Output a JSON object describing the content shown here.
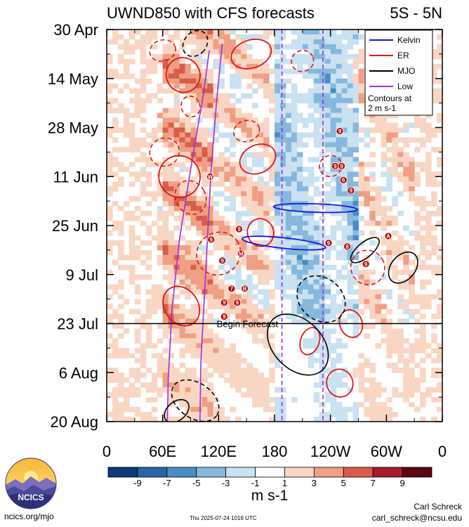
{
  "chart_data": {
    "type": "heatmap",
    "title": "UWND850 with CFS forecasts",
    "lat_band": "5S - 5N",
    "y_ticks": [
      {
        "label": "30 Apr",
        "day": 0
      },
      {
        "label": "14 May",
        "day": 14
      },
      {
        "label": "28 May",
        "day": 28
      },
      {
        "label": "11 Jun",
        "day": 42
      },
      {
        "label": "25 Jun",
        "day": 56
      },
      {
        "label": "9 Jul",
        "day": 70
      },
      {
        "label": "23 Jul",
        "day": 84
      },
      {
        "label": "6 Aug",
        "day": 98
      },
      {
        "label": "20 Aug",
        "day": 112
      }
    ],
    "ylim_days": [
      0,
      112
    ],
    "x_ticks": [
      {
        "label": "0",
        "lon": 0
      },
      {
        "label": "60E",
        "lon": 60
      },
      {
        "label": "120E",
        "lon": 120
      },
      {
        "label": "180",
        "lon": 180
      },
      {
        "label": "120W",
        "lon": 240
      },
      {
        "label": "60W",
        "lon": 300
      },
      {
        "label": "0",
        "lon": 360
      }
    ],
    "xlim_lon": [
      0,
      360
    ],
    "forecast_line": {
      "day": 84,
      "label": "Begin Forecast"
    },
    "legend": {
      "position": "top-right",
      "items": [
        {
          "label": "Kelvin",
          "color": "#1515e0"
        },
        {
          "label": "ER",
          "color": "#e01515"
        },
        {
          "label": "MJO",
          "color": "#000000"
        },
        {
          "label": "Low",
          "color": "#9b30e0"
        }
      ],
      "note_line1": "Contours at",
      "note_line2": "2 m s-1"
    },
    "colorbar": {
      "unit": "m s-1",
      "bounds": [
        -10,
        -8,
        -6,
        -4,
        -2,
        0,
        2,
        4,
        6,
        8,
        10
      ],
      "labels": [
        "-9",
        "-7",
        "-5",
        "-3",
        "-1",
        "1",
        "3",
        "5",
        "7",
        "9"
      ],
      "colors": [
        "#0b3a78",
        "#2a64a8",
        "#4a8cc4",
        "#86b8dc",
        "#c9e1f1",
        "#ffffff",
        "#f9d6c4",
        "#ef9f83",
        "#d95d4a",
        "#a81a2e",
        "#5c0512"
      ]
    },
    "low_lines": [
      {
        "points": [
          [
            65,
            112
          ],
          [
            66,
            100
          ],
          [
            70,
            80
          ],
          [
            78,
            60
          ],
          [
            90,
            40
          ],
          [
            104,
            18
          ],
          [
            110,
            6
          ]
        ]
      },
      {
        "points": [
          [
            100,
            112
          ],
          [
            101,
            95
          ],
          [
            104,
            80
          ],
          [
            108,
            60
          ],
          [
            112,
            40
          ],
          [
            118,
            20
          ],
          [
            124,
            4
          ]
        ]
      },
      {
        "points": [
          [
            188,
            0
          ],
          [
            188,
            40
          ],
          [
            188,
            80
          ],
          [
            188,
            112
          ]
        ],
        "dashed": true
      },
      {
        "points": [
          [
            232,
            0
          ],
          [
            232,
            40
          ],
          [
            232,
            80
          ],
          [
            232,
            112
          ]
        ],
        "dashed": true
      }
    ],
    "kelvin": [
      {
        "cx": 190,
        "cy": 61,
        "rx": 45,
        "ry": 1.5,
        "rot": 6
      },
      {
        "cx": 224,
        "cy": 51,
        "rx": 45,
        "ry": 1.2,
        "rot": 2
      }
    ],
    "er_solid": [
      {
        "cx": 82,
        "cy": 13,
        "rx": 18,
        "ry": 5,
        "rot": -25
      },
      {
        "cx": 155,
        "cy": 7,
        "rx": 22,
        "ry": 4,
        "rot": -18
      },
      {
        "cx": 78,
        "cy": 42,
        "rx": 22,
        "ry": 6,
        "rot": -30
      },
      {
        "cx": 162,
        "cy": 37,
        "rx": 20,
        "ry": 4,
        "rot": -25
      },
      {
        "cx": 80,
        "cy": 79,
        "rx": 18,
        "ry": 6,
        "rot": -35
      },
      {
        "cx": 218,
        "cy": 89,
        "rx": 10,
        "ry": 4,
        "rot": 20
      },
      {
        "cx": 262,
        "cy": 84,
        "rx": 12,
        "ry": 4,
        "rot": -20
      },
      {
        "cx": 250,
        "cy": 101,
        "rx": 14,
        "ry": 4,
        "rot": -20
      },
      {
        "cx": 165,
        "cy": 58,
        "rx": 14,
        "ry": 4,
        "rot": -20
      }
    ],
    "er_dashed": [
      {
        "cx": 60,
        "cy": 6,
        "rx": 14,
        "ry": 3,
        "rot": -15
      },
      {
        "cx": 62,
        "cy": 35,
        "rx": 16,
        "ry": 4,
        "rot": -25
      },
      {
        "cx": 90,
        "cy": 48,
        "rx": 16,
        "ry": 5,
        "rot": -30
      },
      {
        "cx": 150,
        "cy": 29,
        "rx": 14,
        "ry": 3,
        "rot": -15
      },
      {
        "cx": 240,
        "cy": 39,
        "rx": 12,
        "ry": 3,
        "rot": -20
      },
      {
        "cx": 120,
        "cy": 64,
        "rx": 24,
        "ry": 6,
        "rot": -35
      },
      {
        "cx": 210,
        "cy": 9,
        "rx": 12,
        "ry": 3,
        "rot": -20
      },
      {
        "cx": 280,
        "cy": 68,
        "rx": 18,
        "ry": 5,
        "rot": -30
      },
      {
        "cx": 90,
        "cy": 22,
        "rx": 10,
        "ry": 3,
        "rot": -20
      }
    ],
    "mjo_solid": [
      {
        "cx": 205,
        "cy": 90,
        "rx": 38,
        "ry": 7,
        "rot": 45
      },
      {
        "cx": 318,
        "cy": 68,
        "rx": 13,
        "ry": 5,
        "rot": 40
      },
      {
        "cx": 277,
        "cy": 63,
        "rx": 8,
        "ry": 5,
        "rot": 50
      },
      {
        "cx": 75,
        "cy": 109,
        "rx": 10,
        "ry": 4,
        "rot": 50
      }
    ],
    "mjo_dashed": [
      {
        "cx": 230,
        "cy": 77,
        "rx": 28,
        "ry": 6,
        "rot": 40
      },
      {
        "cx": 95,
        "cy": 106,
        "rx": 28,
        "ry": 5,
        "rot": 35
      },
      {
        "cx": 95,
        "cy": 4,
        "rx": 12,
        "ry": 4,
        "rot": 40
      }
    ],
    "cyclones": [
      {
        "label": "9",
        "lon": 250,
        "day": 29
      },
      {
        "label": "9",
        "lon": 245,
        "day": 39
      },
      {
        "label": "9",
        "lon": 252,
        "day": 39
      },
      {
        "label": "6",
        "lon": 254,
        "day": 43
      },
      {
        "label": "9",
        "lon": 262,
        "day": 46
      },
      {
        "label": "W",
        "lon": 111,
        "day": 42
      },
      {
        "label": "9",
        "lon": 142,
        "day": 57
      },
      {
        "label": "9",
        "lon": 112,
        "day": 60
      },
      {
        "label": "9",
        "lon": 124,
        "day": 66
      },
      {
        "label": "M",
        "lon": 144,
        "day": 64
      },
      {
        "label": "7",
        "lon": 134,
        "day": 74
      },
      {
        "label": "B",
        "lon": 148,
        "day": 74
      },
      {
        "label": "9",
        "lon": 126,
        "day": 78
      },
      {
        "label": "9",
        "lon": 140,
        "day": 78
      },
      {
        "label": "9",
        "lon": 126,
        "day": 82
      },
      {
        "label": "9",
        "lon": 238,
        "day": 61
      },
      {
        "label": "8",
        "lon": 258,
        "day": 62
      },
      {
        "label": "A",
        "lon": 302,
        "day": 59
      },
      {
        "label": "9",
        "lon": 278,
        "day": 67
      }
    ]
  },
  "footer": {
    "site": "ncics.org/mjo",
    "timestamp": "Thu 2025-07-24 1016 UTC",
    "author": "Carl Schreck",
    "email": "carl_schreck@ncsu.edu",
    "logo_text": "NCICS"
  }
}
